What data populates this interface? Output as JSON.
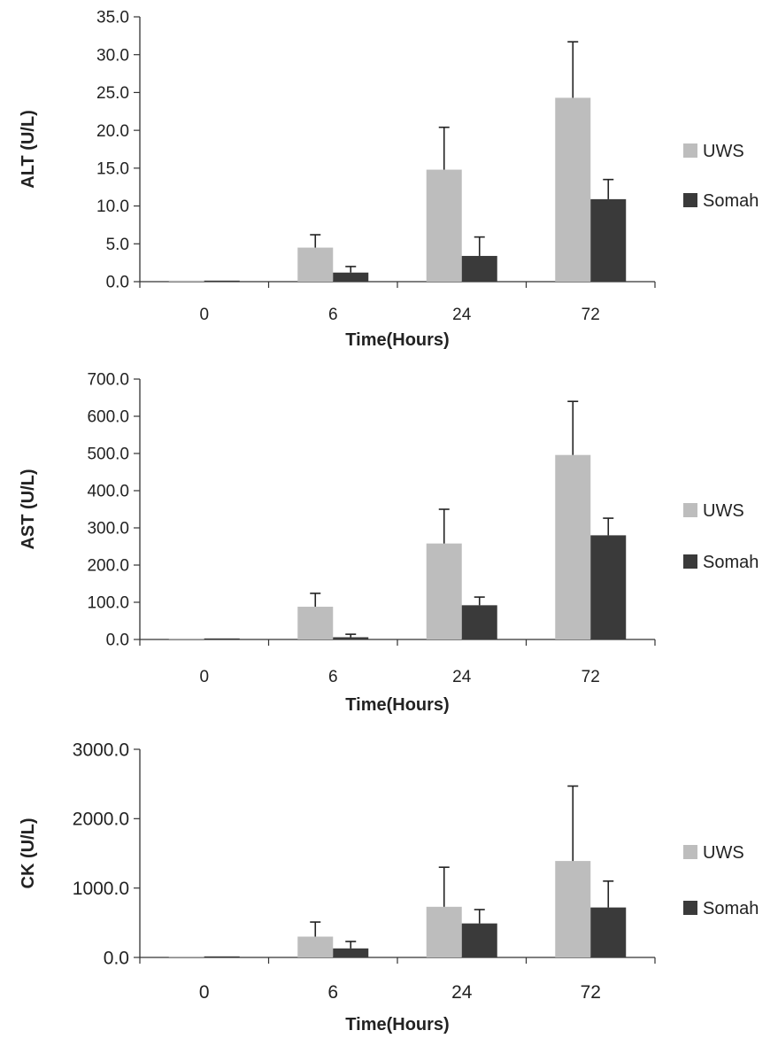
{
  "colors": {
    "uws": "#bdbdbd",
    "somah": "#3a3a3a",
    "axis": "#333333",
    "text": "#222222"
  },
  "chart_data": [
    {
      "type": "bar",
      "xlabel": "Time(Hours)",
      "ylabel": "ALT (U/L)",
      "categories": [
        "0",
        "6",
        "24",
        "72"
      ],
      "ylim": [
        0,
        35
      ],
      "yticks": [
        0,
        5,
        10,
        15,
        20,
        25,
        30,
        35
      ],
      "ytick_labels": [
        "0.0",
        "5.0",
        "10.0",
        "15.0",
        "20.0",
        "25.0",
        "30.0",
        "35.0"
      ],
      "legend": "right",
      "series": [
        {
          "name": "UWS",
          "values": [
            0.1,
            4.5,
            14.8,
            24.3
          ],
          "errors": [
            0,
            1.7,
            5.6,
            7.4
          ]
        },
        {
          "name": "Somah",
          "values": [
            0.1,
            1.2,
            3.4,
            10.9
          ],
          "errors": [
            0,
            0.8,
            2.5,
            2.6
          ]
        }
      ]
    },
    {
      "type": "bar",
      "xlabel": "Time(Hours)",
      "ylabel": "AST (U/L)",
      "categories": [
        "0",
        "6",
        "24",
        "72"
      ],
      "ylim": [
        0,
        700
      ],
      "yticks": [
        0,
        100,
        200,
        300,
        400,
        500,
        600,
        700
      ],
      "ytick_labels": [
        "0.0",
        "100.0",
        "200.0",
        "300.0",
        "400.0",
        "500.0",
        "600.0",
        "700.0"
      ],
      "legend": "right",
      "series": [
        {
          "name": "UWS",
          "values": [
            0,
            88,
            258,
            496
          ],
          "errors": [
            0,
            36,
            92,
            144
          ]
        },
        {
          "name": "Somah",
          "values": [
            0,
            6,
            92,
            280
          ],
          "errors": [
            0,
            8,
            22,
            46
          ]
        }
      ]
    },
    {
      "type": "bar",
      "xlabel": "Time(Hours)",
      "ylabel": "CK (U/L)",
      "categories": [
        "0",
        "6",
        "24",
        "72"
      ],
      "ylim": [
        0,
        3000
      ],
      "yticks": [
        0,
        1000,
        2000,
        3000
      ],
      "ytick_labels": [
        "0.0",
        "1000.0",
        "2000.0",
        "3000.0"
      ],
      "legend": "right",
      "series": [
        {
          "name": "UWS",
          "values": [
            0,
            300,
            730,
            1390
          ],
          "errors": [
            0,
            210,
            570,
            1080
          ]
        },
        {
          "name": "Somah",
          "values": [
            0,
            130,
            490,
            720
          ],
          "errors": [
            0,
            100,
            200,
            380
          ]
        }
      ]
    }
  ]
}
